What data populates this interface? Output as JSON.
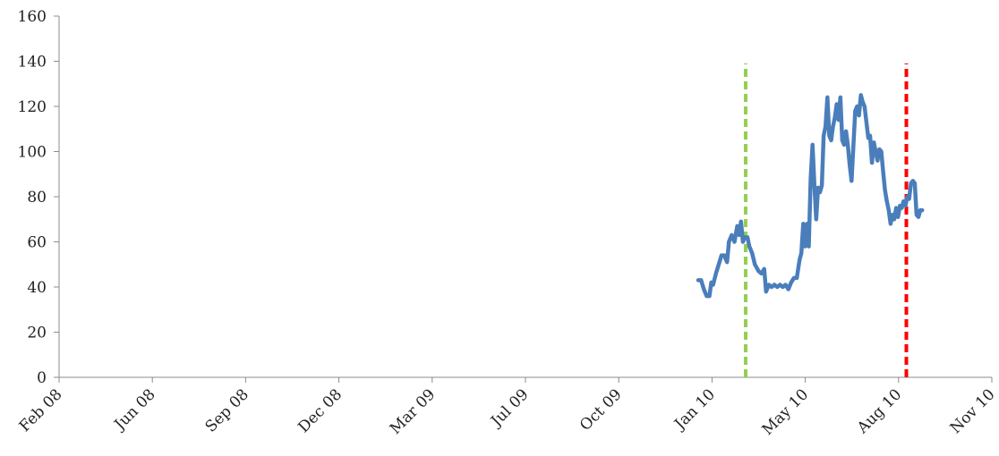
{
  "chart_data": {
    "type": "line",
    "title": "",
    "xlabel": "",
    "ylabel": "",
    "ylim": [
      0,
      160
    ],
    "y_ticks": [
      0,
      20,
      40,
      60,
      80,
      100,
      120,
      140,
      160
    ],
    "x_tick_labels": [
      "Feb 08",
      "Jun 08",
      "Sep 08",
      "Dec 08",
      "Mar 09",
      "Jul 09",
      "Oct 09",
      "Jan 10",
      "May 10",
      "Aug 10",
      "Nov 10"
    ],
    "grid": false,
    "legend": "none",
    "series": [
      {
        "color": "#4a7ebb",
        "points": [
          [
            "2009-12-20",
            43
          ],
          [
            "2009-12-23",
            43
          ],
          [
            "2009-12-26",
            39
          ],
          [
            "2009-12-29",
            36
          ],
          [
            "2010-01-01",
            36
          ],
          [
            "2010-01-03",
            42
          ],
          [
            "2010-01-05",
            41
          ],
          [
            "2010-01-08",
            46
          ],
          [
            "2010-01-11",
            50
          ],
          [
            "2010-01-14",
            54
          ],
          [
            "2010-01-17",
            54
          ],
          [
            "2010-01-20",
            51
          ],
          [
            "2010-01-22",
            60
          ],
          [
            "2010-01-25",
            63
          ],
          [
            "2010-01-28",
            60
          ],
          [
            "2010-01-31",
            67
          ],
          [
            "2010-02-02",
            63
          ],
          [
            "2010-02-04",
            69
          ],
          [
            "2010-02-06",
            60
          ],
          [
            "2010-02-08",
            62
          ],
          [
            "2010-02-11",
            62
          ],
          [
            "2010-02-13",
            58
          ],
          [
            "2010-02-16",
            55
          ],
          [
            "2010-02-19",
            50
          ],
          [
            "2010-02-23",
            47
          ],
          [
            "2010-02-26",
            46
          ],
          [
            "2010-03-01",
            48
          ],
          [
            "2010-03-03",
            38
          ],
          [
            "2010-03-06",
            41
          ],
          [
            "2010-03-09",
            40
          ],
          [
            "2010-03-12",
            41
          ],
          [
            "2010-03-15",
            40
          ],
          [
            "2010-03-18",
            41
          ],
          [
            "2010-03-21",
            40
          ],
          [
            "2010-03-24",
            41
          ],
          [
            "2010-03-27",
            39
          ],
          [
            "2010-03-30",
            42
          ],
          [
            "2010-04-02",
            44
          ],
          [
            "2010-04-05",
            44
          ],
          [
            "2010-04-08",
            52
          ],
          [
            "2010-04-10",
            55
          ],
          [
            "2010-04-12",
            68
          ],
          [
            "2010-04-14",
            58
          ],
          [
            "2010-04-16",
            68
          ],
          [
            "2010-04-18",
            58
          ],
          [
            "2010-04-20",
            88
          ],
          [
            "2010-04-22",
            103
          ],
          [
            "2010-04-24",
            85
          ],
          [
            "2010-04-26",
            70
          ],
          [
            "2010-04-28",
            84
          ],
          [
            "2010-04-30",
            82
          ],
          [
            "2010-05-02",
            85
          ],
          [
            "2010-05-04",
            107
          ],
          [
            "2010-05-06",
            111
          ],
          [
            "2010-05-08",
            124
          ],
          [
            "2010-05-10",
            107
          ],
          [
            "2010-05-12",
            105
          ],
          [
            "2010-05-14",
            111
          ],
          [
            "2010-05-16",
            115
          ],
          [
            "2010-05-18",
            121
          ],
          [
            "2010-05-20",
            114
          ],
          [
            "2010-05-22",
            124
          ],
          [
            "2010-05-24",
            105
          ],
          [
            "2010-05-26",
            103
          ],
          [
            "2010-05-28",
            109
          ],
          [
            "2010-05-30",
            103
          ],
          [
            "2010-06-01",
            94
          ],
          [
            "2010-06-03",
            87
          ],
          [
            "2010-06-05",
            103
          ],
          [
            "2010-06-07",
            118
          ],
          [
            "2010-06-09",
            120
          ],
          [
            "2010-06-11",
            116
          ],
          [
            "2010-06-13",
            125
          ],
          [
            "2010-06-15",
            122
          ],
          [
            "2010-06-17",
            120
          ],
          [
            "2010-06-19",
            113
          ],
          [
            "2010-06-21",
            106
          ],
          [
            "2010-06-23",
            107
          ],
          [
            "2010-06-25",
            95
          ],
          [
            "2010-06-27",
            104
          ],
          [
            "2010-06-29",
            100
          ],
          [
            "2010-07-01",
            96
          ],
          [
            "2010-07-03",
            101
          ],
          [
            "2010-07-05",
            100
          ],
          [
            "2010-07-07",
            91
          ],
          [
            "2010-07-09",
            83
          ],
          [
            "2010-07-11",
            78
          ],
          [
            "2010-07-13",
            74
          ],
          [
            "2010-07-15",
            68
          ],
          [
            "2010-07-17",
            72
          ],
          [
            "2010-07-19",
            70
          ],
          [
            "2010-07-21",
            75
          ],
          [
            "2010-07-23",
            71
          ],
          [
            "2010-07-25",
            76
          ],
          [
            "2010-07-27",
            75
          ],
          [
            "2010-07-29",
            78
          ],
          [
            "2010-07-31",
            76
          ],
          [
            "2010-08-02",
            80
          ],
          [
            "2010-08-04",
            79
          ],
          [
            "2010-08-06",
            86
          ],
          [
            "2010-08-08",
            87
          ],
          [
            "2010-08-10",
            86
          ],
          [
            "2010-08-12",
            72
          ],
          [
            "2010-08-14",
            71
          ],
          [
            "2010-08-16",
            74
          ],
          [
            "2010-08-18",
            74
          ]
        ]
      }
    ],
    "vertical_markers": [
      {
        "x": "2010-02-09",
        "color": "#92d050",
        "y_top": 139,
        "style": "dashed"
      },
      {
        "x": "2010-08-01",
        "color": "#ff0000",
        "y_top": 139,
        "style": "dashed"
      }
    ]
  }
}
